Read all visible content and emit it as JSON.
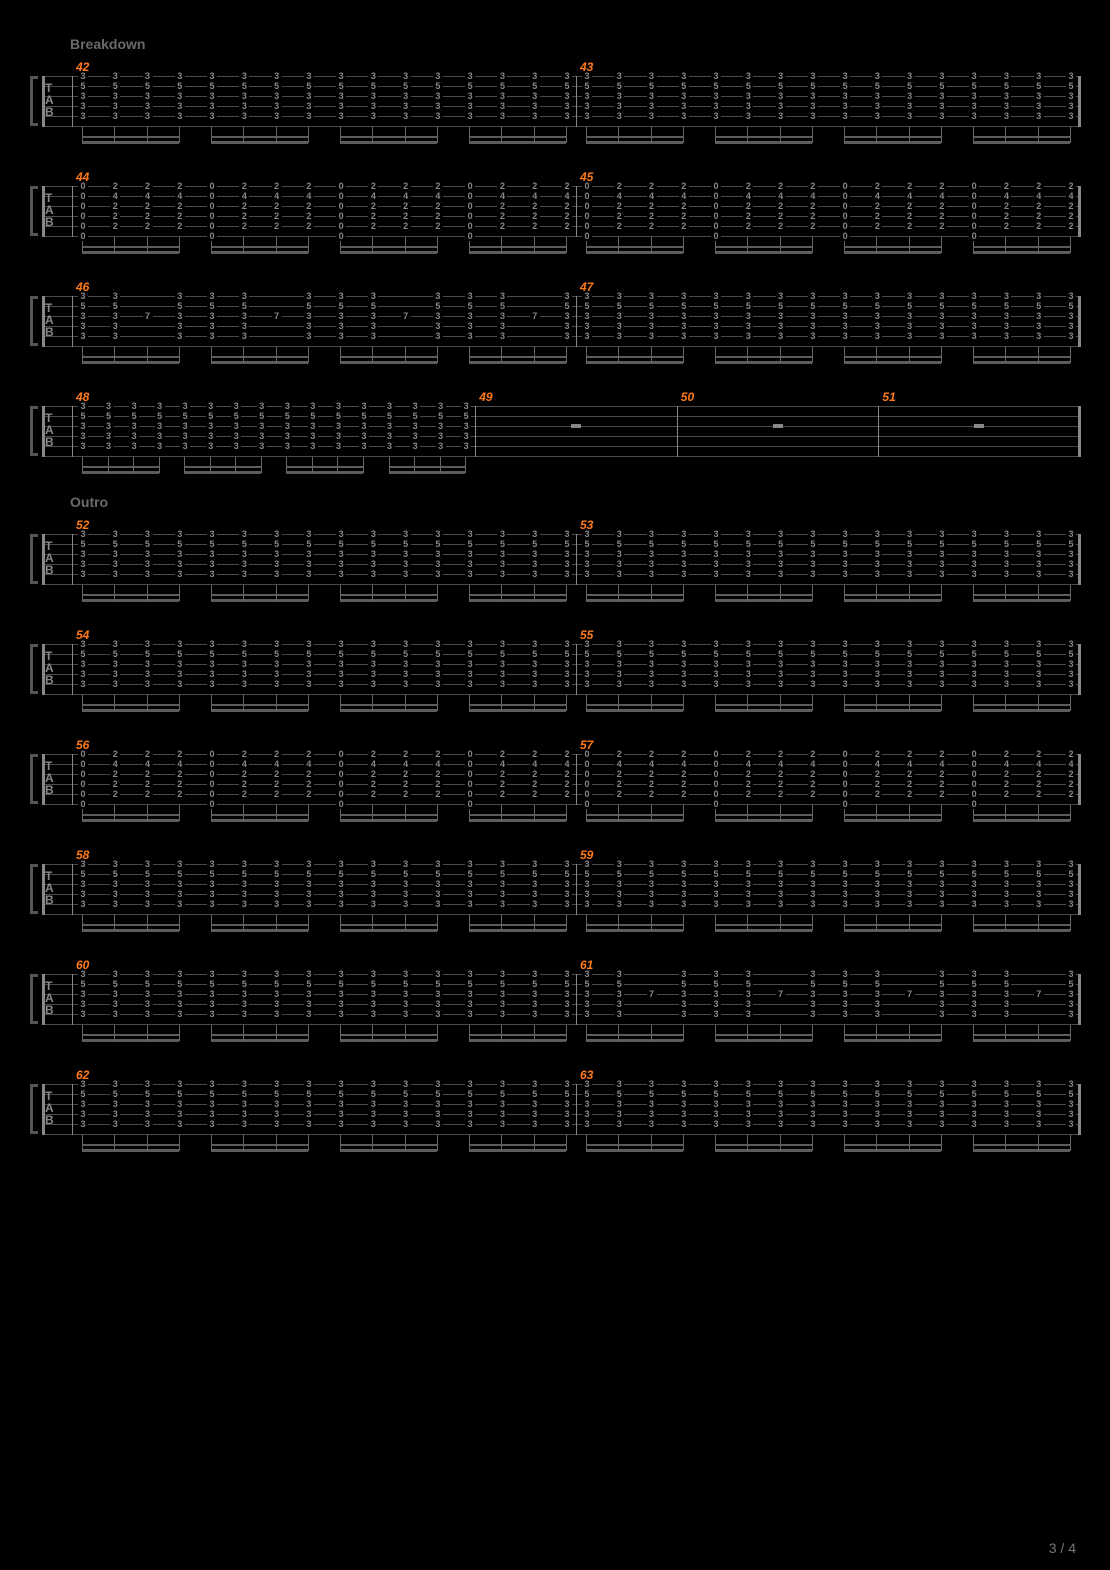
{
  "page_number": "3 / 4",
  "background": "#000000",
  "line_color": "#4a4a4a",
  "measure_num_color": "#ff7a1a",
  "fret_color": "#888888",
  "beam_color": "#5c5c5c",
  "clef_label": "TAB",
  "string_count": 6,
  "staff_left_margin": 30,
  "sections": [
    {
      "label": "Breakdown",
      "before_system": 0
    },
    {
      "label": "Outro",
      "before_system": 4
    }
  ],
  "systems": [
    {
      "measures": [
        {
          "num": 42,
          "pattern": "A"
        },
        {
          "num": 43,
          "pattern": "A"
        }
      ]
    },
    {
      "measures": [
        {
          "num": 44,
          "pattern": "B"
        },
        {
          "num": 45,
          "pattern": "B"
        }
      ]
    },
    {
      "measures": [
        {
          "num": 46,
          "pattern": "C"
        },
        {
          "num": 47,
          "pattern": "A"
        }
      ]
    },
    {
      "measures": [
        {
          "num": 48,
          "pattern": "A",
          "width": 0.4
        },
        {
          "num": 49,
          "pattern": "REST",
          "width": 0.2
        },
        {
          "num": 50,
          "pattern": "REST",
          "width": 0.2
        },
        {
          "num": 51,
          "pattern": "REST",
          "width": 0.2
        }
      ]
    },
    {
      "measures": [
        {
          "num": 52,
          "pattern": "A"
        },
        {
          "num": 53,
          "pattern": "A"
        }
      ]
    },
    {
      "measures": [
        {
          "num": 54,
          "pattern": "A"
        },
        {
          "num": 55,
          "pattern": "A"
        }
      ]
    },
    {
      "measures": [
        {
          "num": 56,
          "pattern": "B"
        },
        {
          "num": 57,
          "pattern": "B"
        }
      ]
    },
    {
      "measures": [
        {
          "num": 58,
          "pattern": "A"
        },
        {
          "num": 59,
          "pattern": "A"
        }
      ]
    },
    {
      "measures": [
        {
          "num": 60,
          "pattern": "A"
        },
        {
          "num": 61,
          "pattern": "C"
        }
      ]
    },
    {
      "measures": [
        {
          "num": 62,
          "pattern": "A"
        },
        {
          "num": 63,
          "pattern": "A"
        }
      ]
    }
  ],
  "chords": {
    "main": {
      "frets": [
        null,
        "3",
        "3",
        "3",
        "5",
        "3"
      ],
      "comment": "low-to-high, null=skip string"
    },
    "open": {
      "frets": [
        "0",
        "0",
        "0",
        "0",
        "0",
        "0"
      ]
    },
    "alt": {
      "frets": [
        null,
        "2",
        "2",
        "2",
        "4",
        "2"
      ]
    },
    "seven": {
      "frets": [
        null,
        null,
        null,
        "7",
        null,
        null
      ]
    }
  },
  "patterns": {
    "A": {
      "beats_per_measure": 16,
      "groups": [
        [
          0,
          3
        ],
        [
          4,
          7
        ],
        [
          8,
          11
        ],
        [
          12,
          15
        ]
      ],
      "notes": [
        {
          "t": 0,
          "c": "main"
        },
        {
          "t": 1,
          "c": "main"
        },
        {
          "t": 2,
          "c": "main"
        },
        {
          "t": 3,
          "c": "main"
        },
        {
          "t": 4,
          "c": "main"
        },
        {
          "t": 5,
          "c": "main"
        },
        {
          "t": 6,
          "c": "main"
        },
        {
          "t": 7,
          "c": "main"
        },
        {
          "t": 8,
          "c": "main"
        },
        {
          "t": 9,
          "c": "main"
        },
        {
          "t": 10,
          "c": "main"
        },
        {
          "t": 11,
          "c": "main"
        },
        {
          "t": 12,
          "c": "main"
        },
        {
          "t": 13,
          "c": "main"
        },
        {
          "t": 14,
          "c": "main"
        },
        {
          "t": 15,
          "c": "main"
        }
      ]
    },
    "B": {
      "beats_per_measure": 16,
      "groups": [
        [
          0,
          3
        ],
        [
          4,
          7
        ],
        [
          8,
          11
        ],
        [
          12,
          15
        ]
      ],
      "notes": [
        {
          "t": 0,
          "c": "open"
        },
        {
          "t": 1,
          "c": "alt"
        },
        {
          "t": 2,
          "c": "alt"
        },
        {
          "t": 3,
          "c": "alt"
        },
        {
          "t": 4,
          "c": "open"
        },
        {
          "t": 5,
          "c": "alt"
        },
        {
          "t": 6,
          "c": "alt"
        },
        {
          "t": 7,
          "c": "alt"
        },
        {
          "t": 8,
          "c": "open"
        },
        {
          "t": 9,
          "c": "alt"
        },
        {
          "t": 10,
          "c": "alt"
        },
        {
          "t": 11,
          "c": "alt"
        },
        {
          "t": 12,
          "c": "open"
        },
        {
          "t": 13,
          "c": "alt"
        },
        {
          "t": 14,
          "c": "alt"
        },
        {
          "t": 15,
          "c": "alt"
        }
      ]
    },
    "C": {
      "beats_per_measure": 16,
      "groups": [
        [
          0,
          3
        ],
        [
          4,
          7
        ],
        [
          8,
          11
        ],
        [
          12,
          15
        ]
      ],
      "notes": [
        {
          "t": 0,
          "c": "main"
        },
        {
          "t": 1,
          "c": "main"
        },
        {
          "t": 2,
          "c": "seven"
        },
        {
          "t": 3,
          "c": "main"
        },
        {
          "t": 4,
          "c": "main"
        },
        {
          "t": 5,
          "c": "main"
        },
        {
          "t": 6,
          "c": "seven"
        },
        {
          "t": 7,
          "c": "main"
        },
        {
          "t": 8,
          "c": "main"
        },
        {
          "t": 9,
          "c": "main"
        },
        {
          "t": 10,
          "c": "seven"
        },
        {
          "t": 11,
          "c": "main"
        },
        {
          "t": 12,
          "c": "main"
        },
        {
          "t": 13,
          "c": "main"
        },
        {
          "t": 14,
          "c": "seven"
        },
        {
          "t": 15,
          "c": "main"
        }
      ]
    },
    "REST": {
      "beats_per_measure": 1,
      "groups": [],
      "notes": [],
      "whole_rest": true
    }
  }
}
